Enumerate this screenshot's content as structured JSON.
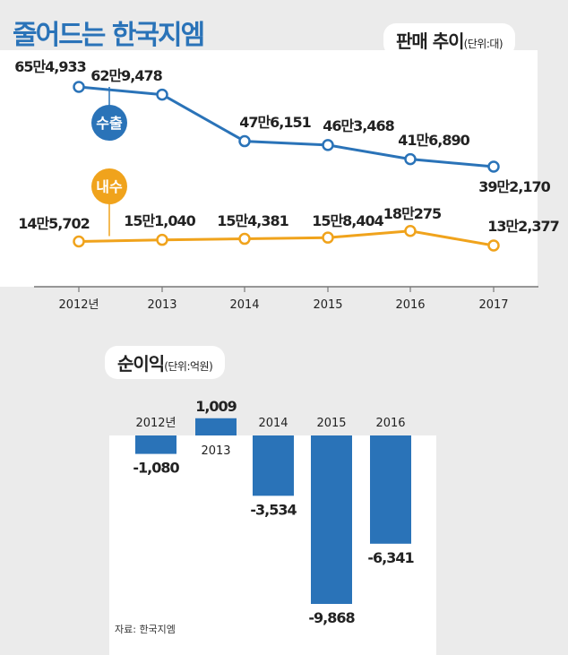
{
  "title": "줄어드는 한국지엠",
  "source": "자료: 한국지엠",
  "colors": {
    "export": "#2a73b8",
    "domestic": "#f0a31c",
    "bar": "#2a73b8",
    "title": "#2a73b8"
  },
  "chart_data": [
    {
      "type": "line",
      "title": "판매 추이",
      "unit": "(단위:대)",
      "categories": [
        "2012년",
        "2013",
        "2014",
        "2015",
        "2016",
        "2017"
      ],
      "series": [
        {
          "name": "수출",
          "values": [
            654933,
            629478,
            476151,
            463468,
            416890,
            392170
          ],
          "labels": [
            "65만4,933",
            "62만9,478",
            "47만6,151",
            "46만3,468",
            "41만6,890",
            "39만2,170"
          ]
        },
        {
          "name": "내수",
          "values": [
            145702,
            151040,
            154381,
            158404,
            180275,
            132377
          ],
          "labels": [
            "14만5,702",
            "15만1,040",
            "15만4,381",
            "15만8,404",
            "18만275",
            "13만2,377"
          ]
        }
      ]
    },
    {
      "type": "bar",
      "title": "순이익",
      "unit": "(단위:억원)",
      "categories": [
        "2012년",
        "2013",
        "2014",
        "2015",
        "2016"
      ],
      "values": [
        -1080,
        1009,
        -3534,
        -9868,
        -6341
      ],
      "labels": [
        "-1,080",
        "1,009",
        "-3,534",
        "-9,868",
        "-6,341"
      ]
    }
  ]
}
